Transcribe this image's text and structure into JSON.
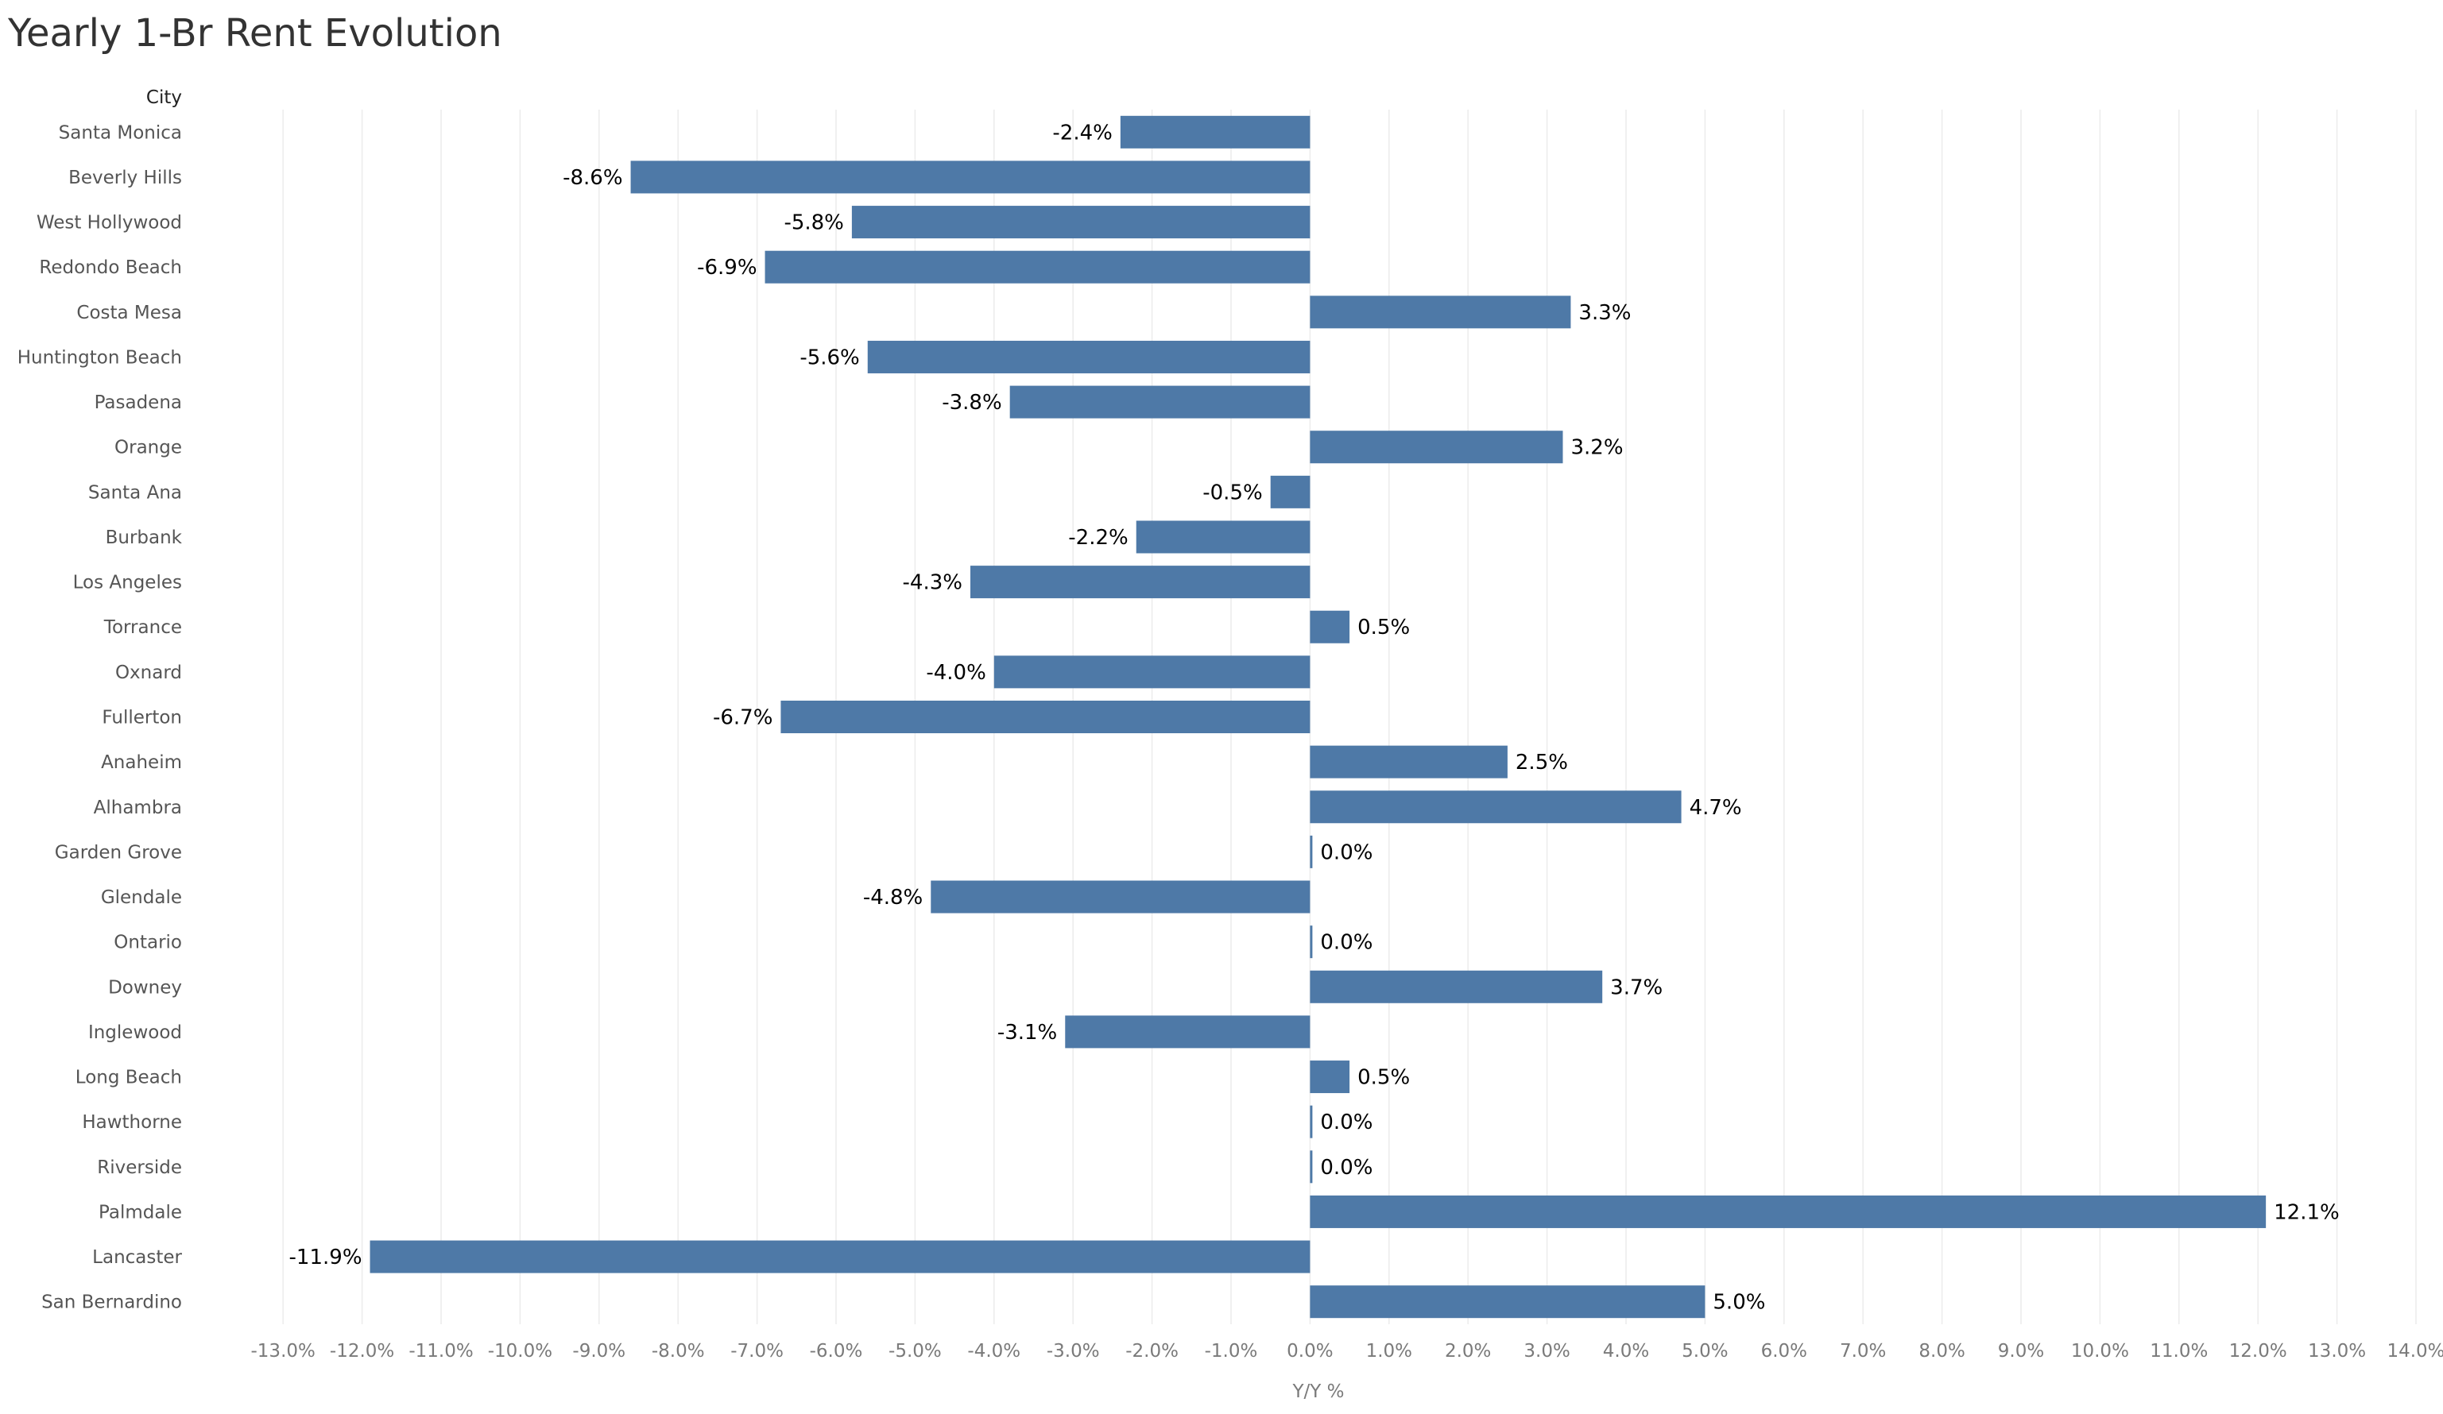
{
  "chart_data": {
    "type": "bar",
    "orientation": "horizontal",
    "title": "Yearly 1-Br Rent Evolution",
    "category_axis_label": "City",
    "xlabel": "Y/Y %",
    "xlim": [
      -14.0,
      14.0
    ],
    "tick_values": [
      -13,
      -12,
      -11,
      -10,
      -9,
      -8,
      -7,
      -6,
      -5,
      -4,
      -3,
      -2,
      -1,
      0,
      1,
      2,
      3,
      4,
      5,
      6,
      7,
      8,
      9,
      10,
      11,
      12,
      13,
      14
    ],
    "tick_labels": [
      "-13.0%",
      "-12.0%",
      "-11.0%",
      "-10.0%",
      "-9.0%",
      "-8.0%",
      "-7.0%",
      "-6.0%",
      "-5.0%",
      "-4.0%",
      "-3.0%",
      "-2.0%",
      "-1.0%",
      "0.0%",
      "1.0%",
      "2.0%",
      "3.0%",
      "4.0%",
      "5.0%",
      "6.0%",
      "7.0%",
      "8.0%",
      "9.0%",
      "10.0%",
      "11.0%",
      "12.0%",
      "13.0%",
      "14.0%"
    ],
    "categories": [
      "Santa Monica",
      "Beverly Hills",
      "West Hollywood",
      "Redondo Beach",
      "Costa Mesa",
      "Huntington Beach",
      "Pasadena",
      "Orange",
      "Santa Ana",
      "Burbank",
      "Los Angeles",
      "Torrance",
      "Oxnard",
      "Fullerton",
      "Anaheim",
      "Alhambra",
      "Garden Grove",
      "Glendale",
      "Ontario",
      "Downey",
      "Inglewood",
      "Long Beach",
      "Hawthorne",
      "Riverside",
      "Palmdale",
      "Lancaster",
      "San Bernardino"
    ],
    "values": [
      -2.4,
      -8.6,
      -5.8,
      -6.9,
      3.3,
      -5.6,
      -3.8,
      3.2,
      -0.5,
      -2.2,
      -4.3,
      0.5,
      -4.0,
      -6.7,
      2.5,
      4.7,
      0.0,
      -4.8,
      0.0,
      3.7,
      -3.1,
      0.5,
      0.0,
      0.0,
      12.1,
      -11.9,
      5.0
    ],
    "value_labels": [
      "-2.4%",
      "-8.6%",
      "-5.8%",
      "-6.9%",
      "3.3%",
      "-5.6%",
      "-3.8%",
      "3.2%",
      "-0.5%",
      "-2.2%",
      "-4.3%",
      "0.5%",
      "-4.0%",
      "-6.7%",
      "2.5%",
      "4.7%",
      "0.0%",
      "-4.8%",
      "0.0%",
      "3.7%",
      "-3.1%",
      "0.5%",
      "0.0%",
      "0.0%",
      "12.1%",
      "-11.9%",
      "5.0%"
    ],
    "grid": true,
    "colors": {
      "bar": "#4e79a7",
      "grid": "#ececec",
      "tick_text": "#7a7a7a",
      "label_text": "#000000",
      "title_text": "#333333"
    }
  }
}
